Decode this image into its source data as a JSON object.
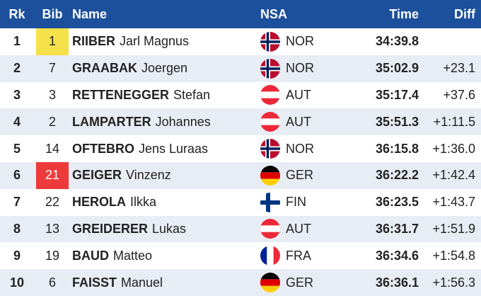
{
  "header": {
    "rank": "Rk",
    "bib": "Bib",
    "name": "Name",
    "nsa": "NSA",
    "time": "Time",
    "diff": "Diff"
  },
  "colors": {
    "header_bg": "#1c4f9c",
    "yellow_bib": "#f5e14a",
    "red_bib": "#ee3a3a",
    "alt_row": "#e8ecf4"
  },
  "results": [
    {
      "rank": "1",
      "bib": "1",
      "bib_highlight": "yellow",
      "surname": "RIIBER",
      "given": "Jarl Magnus",
      "nsa": "NOR",
      "flag_icon": "norway-flag-icon",
      "time": "34:39.8",
      "diff": ""
    },
    {
      "rank": "2",
      "bib": "7",
      "bib_highlight": "",
      "surname": "GRAABAK",
      "given": "Joergen",
      "nsa": "NOR",
      "flag_icon": "norway-flag-icon",
      "time": "35:02.9",
      "diff": "+23.1"
    },
    {
      "rank": "3",
      "bib": "3",
      "bib_highlight": "",
      "surname": "RETTENEGGER",
      "given": "Stefan",
      "nsa": "AUT",
      "flag_icon": "austria-flag-icon",
      "time": "35:17.4",
      "diff": "+37.6"
    },
    {
      "rank": "4",
      "bib": "2",
      "bib_highlight": "",
      "surname": "LAMPARTER",
      "given": "Johannes",
      "nsa": "AUT",
      "flag_icon": "austria-flag-icon",
      "time": "35:51.3",
      "diff": "+1:11.5"
    },
    {
      "rank": "5",
      "bib": "14",
      "bib_highlight": "",
      "surname": "OFTEBRO",
      "given": "Jens Luraas",
      "nsa": "NOR",
      "flag_icon": "norway-flag-icon",
      "time": "36:15.8",
      "diff": "+1:36.0"
    },
    {
      "rank": "6",
      "bib": "21",
      "bib_highlight": "red",
      "surname": "GEIGER",
      "given": "Vinzenz",
      "nsa": "GER",
      "flag_icon": "germany-flag-icon",
      "time": "36:22.2",
      "diff": "+1:42.4"
    },
    {
      "rank": "7",
      "bib": "22",
      "bib_highlight": "",
      "surname": "HEROLA",
      "given": "Ilkka",
      "nsa": "FIN",
      "flag_icon": "finland-flag-icon",
      "time": "36:23.5",
      "diff": "+1:43.7"
    },
    {
      "rank": "8",
      "bib": "13",
      "bib_highlight": "",
      "surname": "GREIDERER",
      "given": "Lukas",
      "nsa": "AUT",
      "flag_icon": "austria-flag-icon",
      "time": "36:31.7",
      "diff": "+1:51.9"
    },
    {
      "rank": "9",
      "bib": "19",
      "bib_highlight": "",
      "surname": "BAUD",
      "given": "Matteo",
      "nsa": "FRA",
      "flag_icon": "france-flag-icon",
      "time": "36:34.6",
      "diff": "+1:54.8"
    },
    {
      "rank": "10",
      "bib": "6",
      "bib_highlight": "",
      "surname": "FAISST",
      "given": "Manuel",
      "nsa": "GER",
      "flag_icon": "germany-flag-icon",
      "time": "36:36.1",
      "diff": "+1:56.3"
    }
  ]
}
